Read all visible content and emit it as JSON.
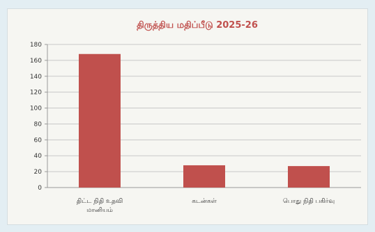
{
  "chart_data": {
    "type": "bar",
    "title": "திருத்திய மதிப்பீடு 2025-26",
    "categories": [
      "திட்ட நிதி உதவி மானியம்",
      "கடன்கள்",
      "பொது நிதி பகிர்வு"
    ],
    "series": [
      {
        "values": [
          168,
          28,
          27
        ]
      }
    ],
    "ylim": [
      0,
      180
    ],
    "yticks": [
      0,
      20,
      40,
      60,
      80,
      100,
      120,
      140,
      160,
      180
    ],
    "xlabel": "",
    "ylabel": "",
    "grid": true,
    "legend": "none",
    "colors": {
      "bar": "#c0504d",
      "title": "#c0504d",
      "grid": "#c8c8c8",
      "text": "#333333"
    }
  }
}
